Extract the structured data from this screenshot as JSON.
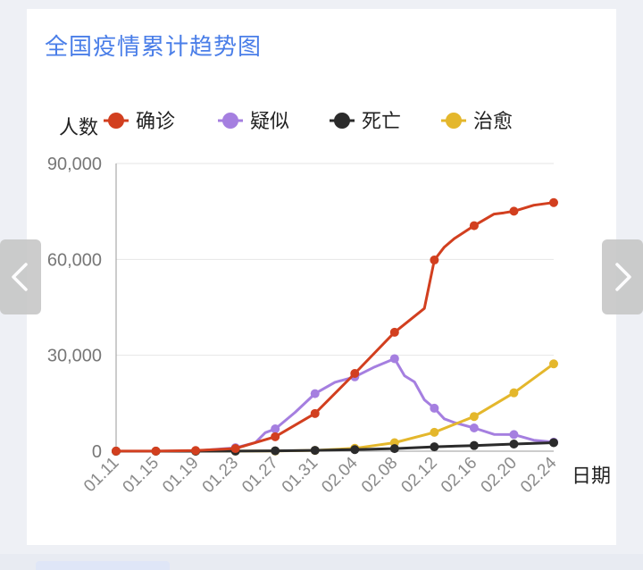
{
  "page": {
    "title": "全国疫情累计趋势图"
  },
  "chart_data": {
    "type": "line",
    "title": "全国疫情累计趋势图",
    "ylabel": "人数",
    "xlabel": "日期",
    "ylim": [
      0,
      90000
    ],
    "yticks": [
      0,
      30000,
      60000,
      90000
    ],
    "ytick_labels": [
      "0",
      "30,000",
      "60,000",
      "90,000"
    ],
    "grid": true,
    "legend_position": "top",
    "x_tick_labels": [
      "01.11",
      "01.15",
      "01.19",
      "01.23",
      "01.27",
      "01.31",
      "02.04",
      "02.08",
      "02.12",
      "02.16",
      "02.20",
      "02.24"
    ],
    "x_range": [
      0,
      44
    ],
    "x_tick_positions": [
      0,
      4,
      8,
      12,
      16,
      20,
      24,
      28,
      32,
      36,
      40,
      44
    ],
    "series": [
      {
        "name": "确诊",
        "color": "#d23f1f",
        "points": [
          [
            0,
            41
          ],
          [
            4,
            41
          ],
          [
            8,
            198
          ],
          [
            12,
            830
          ],
          [
            16,
            4515
          ],
          [
            20,
            11791
          ],
          [
            24,
            24324
          ],
          [
            28,
            37198
          ],
          [
            31,
            44653
          ],
          [
            32,
            59804
          ],
          [
            33,
            63851
          ],
          [
            34,
            66492
          ],
          [
            36,
            70548
          ],
          [
            38,
            74185
          ],
          [
            39,
            74576
          ],
          [
            40,
            75077
          ],
          [
            42,
            76936
          ],
          [
            44,
            77779
          ]
        ],
        "markers": [
          0,
          4,
          8,
          12,
          16,
          20,
          24,
          28,
          32,
          36,
          40,
          44
        ]
      },
      {
        "name": "疑似",
        "color": "#a57fe0",
        "points": [
          [
            0,
            0
          ],
          [
            4,
            0
          ],
          [
            8,
            54
          ],
          [
            12,
            1072
          ],
          [
            14,
            2684
          ],
          [
            15,
            5794
          ],
          [
            16,
            6973
          ],
          [
            18,
            12167
          ],
          [
            20,
            17988
          ],
          [
            22,
            21558
          ],
          [
            24,
            23260
          ],
          [
            26,
            26359
          ],
          [
            28,
            28942
          ],
          [
            29,
            23589
          ],
          [
            30,
            21675
          ],
          [
            31,
            16067
          ],
          [
            32,
            13435
          ],
          [
            33,
            10109
          ],
          [
            34,
            8969
          ],
          [
            36,
            7264
          ],
          [
            38,
            5248
          ],
          [
            40,
            5206
          ],
          [
            42,
            3434
          ],
          [
            44,
            2824
          ]
        ],
        "markers": [
          0,
          4,
          8,
          12,
          16,
          20,
          24,
          28,
          32,
          36,
          40,
          44
        ]
      },
      {
        "name": "死亡",
        "color": "#2b2b2b",
        "points": [
          [
            0,
            1
          ],
          [
            4,
            2
          ],
          [
            8,
            4
          ],
          [
            12,
            25
          ],
          [
            16,
            106
          ],
          [
            20,
            259
          ],
          [
            24,
            490
          ],
          [
            28,
            811
          ],
          [
            32,
            1367
          ],
          [
            36,
            1770
          ],
          [
            40,
            2236
          ],
          [
            44,
            2663
          ]
        ],
        "markers": [
          0,
          4,
          8,
          12,
          16,
          20,
          24,
          28,
          32,
          36,
          40,
          44
        ]
      },
      {
        "name": "治愈",
        "color": "#e4b72c",
        "points": [
          [
            0,
            0
          ],
          [
            4,
            0
          ],
          [
            8,
            2
          ],
          [
            12,
            34
          ],
          [
            16,
            60
          ],
          [
            20,
            243
          ],
          [
            24,
            892
          ],
          [
            28,
            2649
          ],
          [
            32,
            5911
          ],
          [
            36,
            10844
          ],
          [
            40,
            18264
          ],
          [
            44,
            27323
          ]
        ],
        "markers": [
          0,
          4,
          8,
          12,
          16,
          20,
          24,
          28,
          32,
          36,
          40,
          44
        ]
      }
    ]
  },
  "nav": {
    "prev_icon": "chevron-left-icon",
    "next_icon": "chevron-right-icon"
  }
}
